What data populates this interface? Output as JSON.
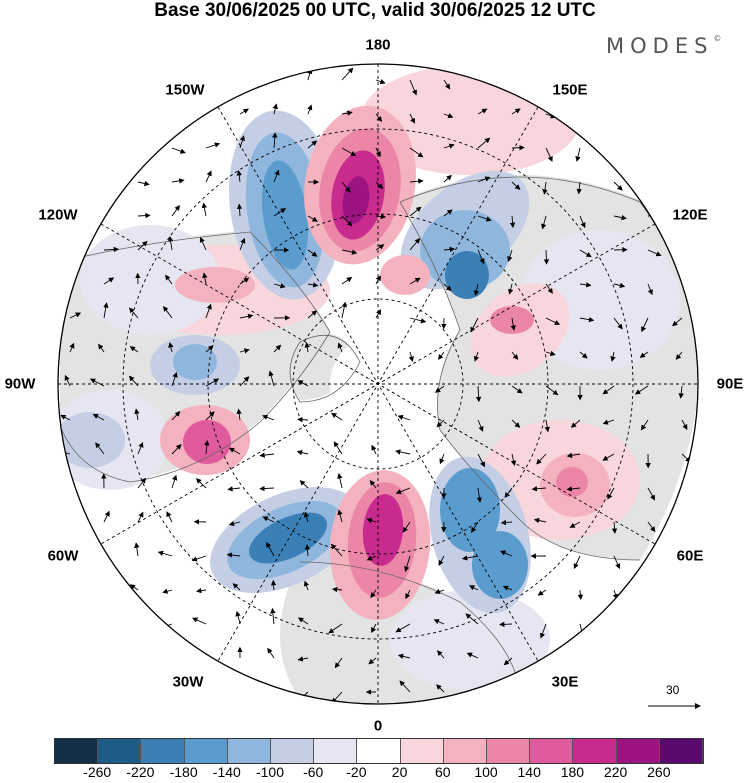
{
  "header": {
    "title": "Base 30/06/2025 00 UTC, valid 30/06/2025 12 UTC",
    "logo": "MODES",
    "logo_mark": "©"
  },
  "map": {
    "projection": "north-polar-stereographic",
    "longitude_labels": {
      "top": "180",
      "top_right": "150E",
      "upper_right": "120E",
      "right": "90E",
      "lower_right": "60E",
      "bottom_right": "30E",
      "bottom": "0",
      "bottom_left": "30W",
      "lower_left": "60W",
      "left": "90W",
      "upper_left": "120W",
      "top_left": "150W"
    },
    "reference_vector_label": "30",
    "fields": [
      "filled anomaly contours",
      "wind vectors",
      "coastlines",
      "lat/lon grid"
    ]
  },
  "colorbar": {
    "colors": [
      "#10304a",
      "#1c5c86",
      "#3a7fb6",
      "#5b9ccf",
      "#8fb6dc",
      "#c4cfe6",
      "#e6e6f2",
      "#ffffff",
      "#f9d6db",
      "#f4b2bf",
      "#ec86a6",
      "#e05a9e",
      "#c82a8e",
      "#9c1482",
      "#5a0a6e"
    ],
    "tick_labels": [
      "-260",
      "-220",
      "-180",
      "-140",
      "-100",
      "-60",
      "-20",
      "20",
      "60",
      "100",
      "140",
      "180",
      "220",
      "260"
    ]
  }
}
